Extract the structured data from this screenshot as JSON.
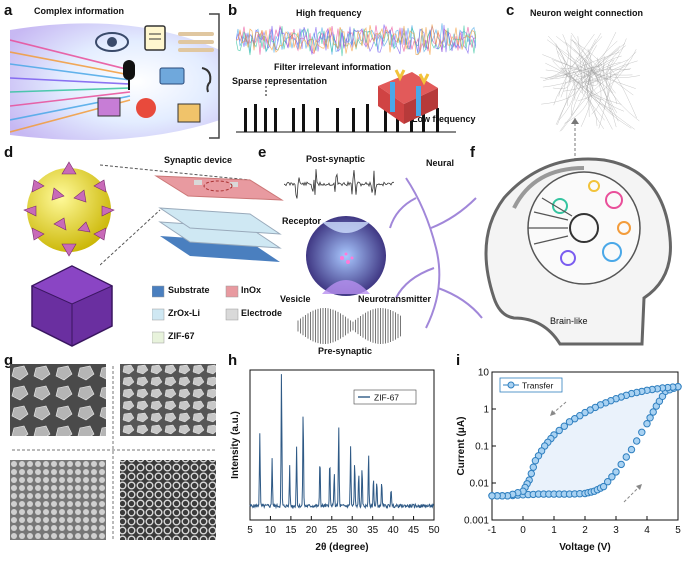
{
  "panel_letters": [
    "a",
    "b",
    "c",
    "d",
    "e",
    "f",
    "g",
    "h",
    "i"
  ],
  "panel_a": {
    "title": "Complex information"
  },
  "panel_b": {
    "high_label": "High frequency",
    "filter_label": "Filter irrelevant information",
    "sparse_label": "Sparse representation",
    "low_label": "Low frequency"
  },
  "panel_c": {
    "title": "Neuron weight connection"
  },
  "panel_d": {
    "device_title": "Synaptic device",
    "legend": [
      "Substrate",
      "InOx",
      "ZrOx-Li",
      "Electrode",
      "ZIF-67"
    ],
    "legend_colors": [
      "#4a7fbf",
      "#e89aa0",
      "#cfe8f3",
      "#d9d9d9",
      "#e8f3dc"
    ]
  },
  "panel_e": {
    "post_label": "Post-synaptic",
    "neural_label": "Neural",
    "receptor_label": "Receptor",
    "vesicle_label": "Vesicle",
    "neurotransmitter_label": "Neurotransmitter",
    "pre_label": "Pre-synaptic"
  },
  "panel_f": {
    "brain_label": "Brain-like"
  },
  "panel_h": {
    "chart_data": {
      "type": "line",
      "xlabel": "2θ (degree)",
      "ylabel": "Intensity (a.u.)",
      "xlim": [
        5,
        50
      ],
      "xticks": [
        "5",
        "10",
        "15",
        "20",
        "25",
        "30",
        "35",
        "40",
        "45",
        "50"
      ],
      "series": [
        {
          "name": "ZIF-67",
          "color": "#2f5a86",
          "peaks": [
            [
              7.4,
              0.55
            ],
            [
              10.4,
              0.36
            ],
            [
              12.7,
              1.0
            ],
            [
              14.7,
              0.3
            ],
            [
              16.4,
              0.44
            ],
            [
              18.0,
              0.72
            ],
            [
              22.1,
              0.36
            ],
            [
              24.5,
              0.34
            ],
            [
              25.6,
              0.25
            ],
            [
              26.7,
              0.6
            ],
            [
              29.6,
              0.44
            ],
            [
              30.6,
              0.33
            ],
            [
              31.6,
              0.24
            ],
            [
              32.4,
              0.28
            ],
            [
              34.0,
              0.4
            ],
            [
              35.2,
              0.22
            ],
            [
              36.0,
              0.18
            ],
            [
              37.2,
              0.18
            ],
            [
              39.5,
              0.14
            ]
          ]
        }
      ]
    }
  },
  "panel_i": {
    "chart_data": {
      "type": "line",
      "xlabel": "Voltage (V)",
      "ylabel": "Current (μA)",
      "xlim": [
        -1,
        5
      ],
      "ylim": [
        0.001,
        10
      ],
      "yscale": "log",
      "xticks": [
        "-1",
        "0",
        "1",
        "2",
        "3",
        "4",
        "5"
      ],
      "yticks": [
        "0.001",
        "0.01",
        "0.1",
        "1",
        "10"
      ],
      "series": [
        {
          "name": "Transfer",
          "color": "#2f7fbf",
          "forward": {
            "x": [
              -1,
              -0.5,
              0,
              0.5,
              1,
              1.5,
              2,
              2.3,
              2.6,
              3,
              3.5,
              4,
              4.3,
              4.6,
              5
            ],
            "y": [
              0.0045,
              0.0045,
              0.0048,
              0.005,
              0.005,
              0.005,
              0.0052,
              0.006,
              0.008,
              0.02,
              0.08,
              0.4,
              1.2,
              3.0,
              4.0
            ]
          },
          "reverse": {
            "x": [
              5,
              4.5,
              4,
              3.5,
              3,
              2.5,
              2,
              1.5,
              1,
              0.7,
              0.4,
              0.2,
              0,
              -0.5,
              -1
            ],
            "y": [
              4.0,
              3.7,
              3.2,
              2.6,
              1.9,
              1.3,
              0.8,
              0.45,
              0.2,
              0.1,
              0.04,
              0.012,
              0.006,
              0.0045,
              0.0045
            ]
          }
        }
      ]
    }
  }
}
